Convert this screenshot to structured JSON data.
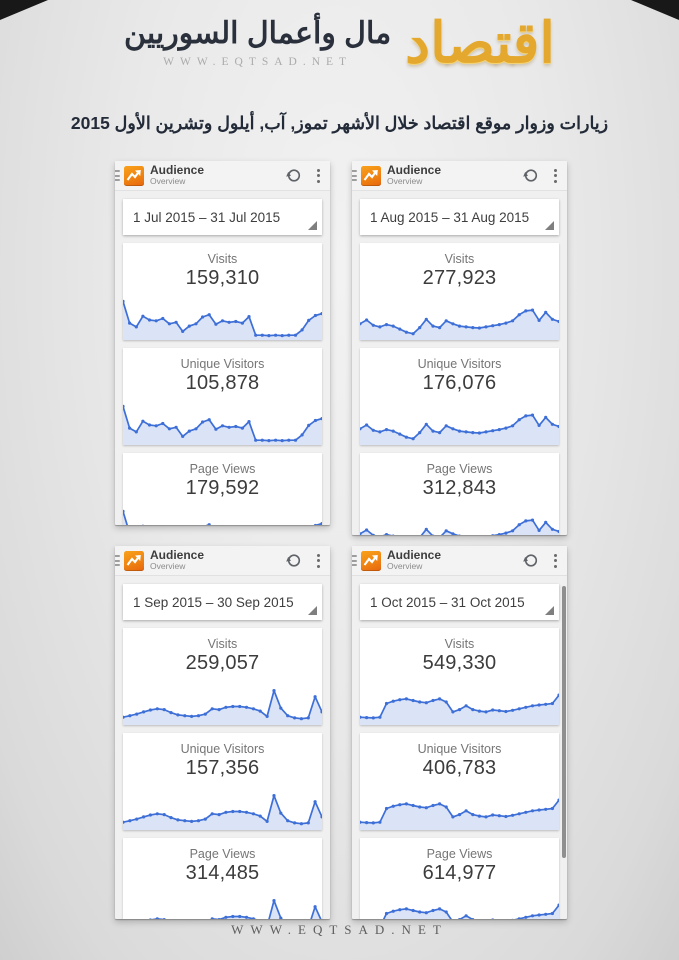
{
  "brand": {
    "calligraphy": "اقتصاد",
    "title": "مال وأعمال السوريين",
    "url": "WWW.EQTSAD.NET"
  },
  "headline": "زيارات وزوار موقع اقتصاد خلال الأشهر تموز, آب, أيلول وتشرين الأول 2015",
  "footer": {
    "url": "WWW.EQTSAD.NET"
  },
  "app": {
    "title": "Audience",
    "subtitle": "Overview"
  },
  "colors": {
    "line_blue": "#3d6fd7",
    "area_blue": "#dbe3f6",
    "ga_orange": "#ef8412",
    "gold": "#e3a82d"
  },
  "cards": [
    {
      "month": "July 2015",
      "date_range": "1 Jul 2015 – 31 Jul 2015",
      "metrics": [
        {
          "label": "Visits",
          "value": "159,310"
        },
        {
          "label": "Unique Visitors",
          "value": "105,878"
        },
        {
          "label": "Page Views",
          "value": "179,592"
        }
      ],
      "sparkline": [
        95,
        38,
        28,
        56,
        46,
        44,
        50,
        36,
        40,
        16,
        30,
        36,
        54,
        60,
        35,
        44,
        40,
        42,
        38,
        55,
        6,
        6,
        5,
        6,
        5,
        6,
        6,
        20,
        45,
        58,
        63
      ]
    },
    {
      "month": "August 2015",
      "date_range": "1 Aug 2015 – 31 Aug 2015",
      "metrics": [
        {
          "label": "Visits",
          "value": "277,923"
        },
        {
          "label": "Unique Visitors",
          "value": "176,076"
        },
        {
          "label": "Page Views",
          "value": "312,843"
        }
      ],
      "sparkline": [
        36,
        46,
        32,
        28,
        34,
        30,
        22,
        14,
        10,
        26,
        48,
        30,
        26,
        44,
        36,
        30,
        28,
        26,
        25,
        28,
        31,
        34,
        38,
        44,
        60,
        70,
        72,
        45,
        66,
        48,
        42
      ]
    },
    {
      "month": "September 2015",
      "date_range": "1 Sep 2015 – 30 Sep 2015",
      "metrics": [
        {
          "label": "Visits",
          "value": "259,057"
        },
        {
          "label": "Unique Visitors",
          "value": "157,356"
        },
        {
          "label": "Page Views",
          "value": "314,485"
        }
      ],
      "sparkline": [
        14,
        18,
        22,
        28,
        33,
        36,
        34,
        26,
        20,
        18,
        16,
        18,
        22,
        36,
        34,
        40,
        42,
        42,
        40,
        36,
        30,
        16,
        84,
        38,
        18,
        12,
        10,
        12,
        68,
        28
      ]
    },
    {
      "month": "October 2015",
      "date_range": "1 Oct 2015 – 31 Oct 2015",
      "metrics": [
        {
          "label": "Visits",
          "value": "549,330"
        },
        {
          "label": "Unique Visitors",
          "value": "406,783"
        },
        {
          "label": "Page Views",
          "value": "614,977"
        }
      ],
      "sparkline": [
        14,
        13,
        12,
        14,
        50,
        56,
        60,
        62,
        58,
        54,
        52,
        58,
        62,
        54,
        28,
        34,
        44,
        34,
        30,
        28,
        33,
        31,
        29,
        32,
        36,
        40,
        44,
        46,
        48,
        50,
        72
      ]
    }
  ]
}
